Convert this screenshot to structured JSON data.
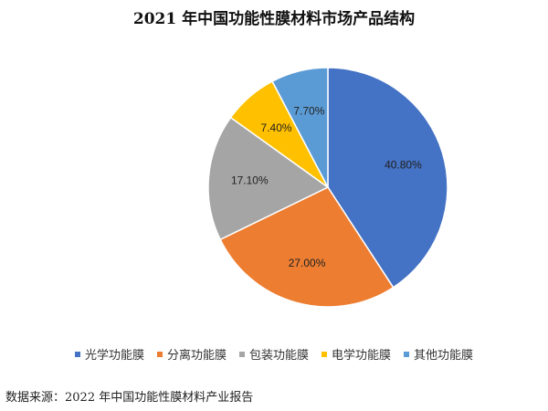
{
  "chart_data": {
    "type": "pie",
    "title": "2021 年中国功能性膜材料市场产品结构",
    "categories": [
      "光学功能膜",
      "分离功能膜",
      "包装功能膜",
      "电学功能膜",
      "其他功能膜"
    ],
    "values": [
      40.8,
      27.0,
      17.1,
      7.4,
      7.7
    ],
    "value_labels": [
      "40.80%",
      "27.00%",
      "17.10%",
      "7.40%",
      "7.70%"
    ],
    "colors": [
      "#4472C4",
      "#ED7D31",
      "#A5A5A5",
      "#FFC000",
      "#5B9BD5"
    ],
    "start_angle_deg": 0,
    "direction": "clockwise",
    "legend_position": "bottom"
  },
  "source_note": "数据来源：2022 年中国功能性膜材料产业报告"
}
